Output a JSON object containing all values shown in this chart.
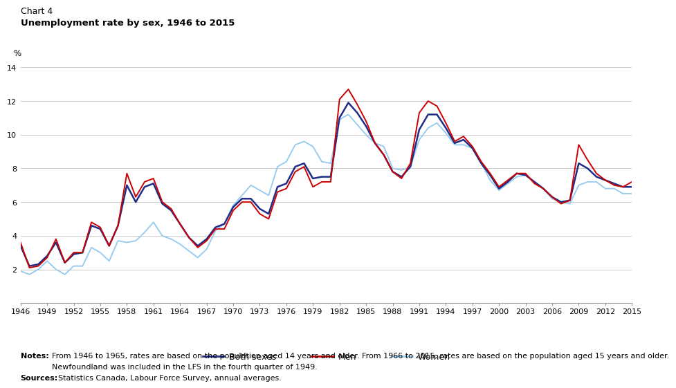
{
  "title_line1": "Chart 4",
  "title_line2": "Unemployment rate by sex, 1946 to 2015",
  "ylabel": "%",
  "ylim": [
    0,
    14
  ],
  "yticks": [
    0,
    2,
    4,
    6,
    8,
    10,
    12,
    14
  ],
  "xlim": [
    1946,
    2015
  ],
  "xticks": [
    1946,
    1949,
    1952,
    1955,
    1958,
    1961,
    1964,
    1967,
    1970,
    1973,
    1976,
    1979,
    1982,
    1985,
    1988,
    1991,
    1994,
    1997,
    2000,
    2003,
    2006,
    2009,
    2012,
    2015
  ],
  "color_both": "#1f2d8a",
  "color_men": "#cc0000",
  "color_women": "#99ccee",
  "legend_labels": [
    "Both sexes",
    "Men",
    "Women"
  ],
  "note_bold": "Notes:",
  "note_text": "From 1946 to 1965, rates are based on the population aged 14 years and older. From 1966 to 2015, rates are based on the population aged 15 years and older.",
  "note_text2": "Newfoundland was included in the LFS in the fourth quarter of 1949.",
  "source_bold": "Sources:",
  "source_text": "Statistics Canada, Labour Force Survey, annual averages.",
  "years": [
    1946,
    1947,
    1948,
    1949,
    1950,
    1951,
    1952,
    1953,
    1954,
    1955,
    1956,
    1957,
    1958,
    1959,
    1960,
    1961,
    1962,
    1963,
    1964,
    1965,
    1966,
    1967,
    1968,
    1969,
    1970,
    1971,
    1972,
    1973,
    1974,
    1975,
    1976,
    1977,
    1978,
    1979,
    1980,
    1981,
    1982,
    1983,
    1984,
    1985,
    1986,
    1987,
    1988,
    1989,
    1990,
    1991,
    1992,
    1993,
    1994,
    1995,
    1996,
    1997,
    1998,
    1999,
    2000,
    2001,
    2002,
    2003,
    2004,
    2005,
    2006,
    2007,
    2008,
    2009,
    2010,
    2011,
    2012,
    2013,
    2014,
    2015
  ],
  "both_sexes": [
    3.4,
    2.2,
    2.3,
    2.8,
    3.6,
    2.4,
    2.9,
    3.0,
    4.6,
    4.4,
    3.4,
    4.6,
    7.0,
    6.0,
    6.9,
    7.1,
    5.9,
    5.5,
    4.7,
    3.9,
    3.4,
    3.8,
    4.5,
    4.7,
    5.7,
    6.2,
    6.2,
    5.6,
    5.3,
    6.9,
    7.1,
    8.1,
    8.3,
    7.4,
    7.5,
    7.5,
    11.0,
    11.9,
    11.3,
    10.5,
    9.5,
    8.8,
    7.8,
    7.5,
    8.1,
    10.3,
    11.2,
    11.2,
    10.4,
    9.5,
    9.7,
    9.2,
    8.3,
    7.6,
    6.8,
    7.2,
    7.7,
    7.6,
    7.2,
    6.8,
    6.3,
    6.0,
    6.1,
    8.3,
    8.0,
    7.5,
    7.3,
    7.1,
    6.9,
    6.9
  ],
  "men": [
    3.6,
    2.1,
    2.2,
    2.7,
    3.8,
    2.4,
    3.0,
    3.0,
    4.8,
    4.5,
    3.4,
    4.6,
    7.7,
    6.3,
    7.2,
    7.4,
    6.0,
    5.6,
    4.7,
    3.9,
    3.3,
    3.7,
    4.4,
    4.4,
    5.5,
    6.0,
    6.0,
    5.3,
    5.0,
    6.6,
    6.8,
    7.8,
    8.1,
    6.9,
    7.2,
    7.2,
    12.1,
    12.7,
    11.8,
    10.8,
    9.5,
    8.8,
    7.8,
    7.4,
    8.3,
    11.3,
    12.0,
    11.7,
    10.7,
    9.6,
    9.9,
    9.3,
    8.4,
    7.7,
    6.9,
    7.3,
    7.7,
    7.7,
    7.1,
    6.8,
    6.3,
    5.9,
    6.1,
    9.4,
    8.5,
    7.7,
    7.3,
    7.0,
    6.9,
    7.2
  ],
  "women": [
    1.9,
    1.7,
    2.0,
    2.5,
    2.0,
    1.7,
    2.2,
    2.2,
    3.3,
    3.0,
    2.5,
    3.7,
    3.6,
    3.7,
    4.2,
    4.8,
    4.0,
    3.8,
    3.5,
    3.1,
    2.7,
    3.2,
    4.3,
    4.7,
    5.8,
    6.4,
    7.0,
    6.7,
    6.4,
    8.1,
    8.4,
    9.4,
    9.6,
    9.3,
    8.4,
    8.3,
    10.9,
    11.2,
    10.6,
    10.0,
    9.5,
    9.3,
    8.0,
    7.9,
    8.1,
    9.7,
    10.4,
    10.7,
    10.1,
    9.4,
    9.4,
    9.2,
    8.3,
    7.3,
    6.7,
    7.1,
    7.5,
    7.6,
    7.2,
    6.8,
    6.2,
    6.0,
    5.9,
    7.0,
    7.2,
    7.2,
    6.8,
    6.8,
    6.5,
    6.5
  ]
}
